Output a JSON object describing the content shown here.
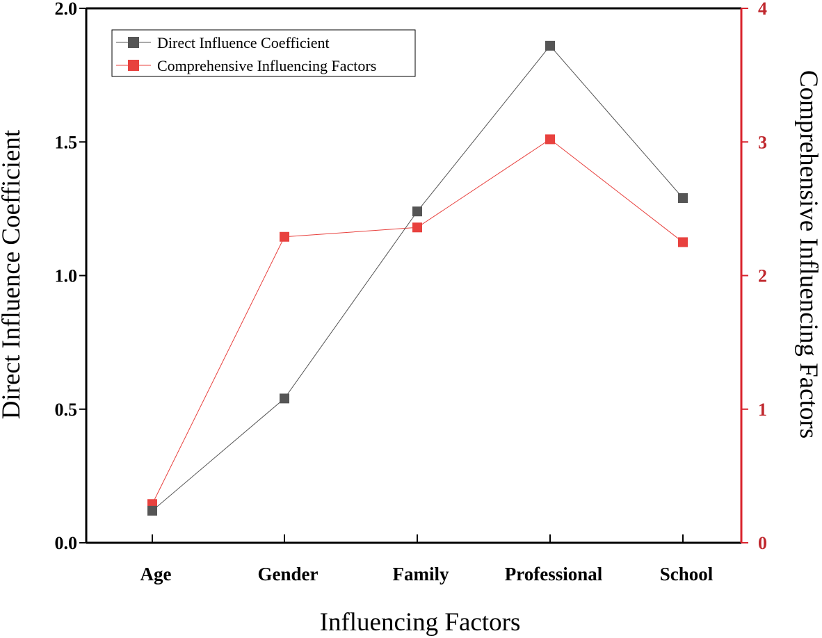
{
  "chart_data": {
    "type": "line",
    "xlabel": "Influencing Factors",
    "ylabel": "Direct Influence Coefficient",
    "ylabel_right": "Comprehensive Influencing Factors",
    "categories": [
      "Age",
      "Gender",
      "Family",
      "Professional",
      "School"
    ],
    "left_axis": {
      "ylim": [
        0,
        2.0
      ],
      "ticks": [
        0,
        0.5,
        1.0,
        1.5,
        2.0
      ],
      "tick_labels": [
        "0.0",
        "0.5",
        "1.0",
        "1.5",
        "2.0"
      ]
    },
    "right_axis": {
      "ylim": [
        0,
        4
      ],
      "ticks": [
        0,
        1,
        2,
        3,
        4
      ],
      "tick_labels": [
        "0",
        "1",
        "2",
        "3",
        "4"
      ]
    },
    "series": [
      {
        "name": "Direct Influence Coefficient",
        "axis": "left",
        "color": "#555555",
        "marker": "square",
        "values": [
          0.12,
          0.54,
          1.24,
          1.86,
          1.29
        ]
      },
      {
        "name": "Comprehensive Influencing Factors",
        "axis": "right",
        "color": "#e8413e",
        "marker": "square",
        "values": [
          0.29,
          2.29,
          2.36,
          3.02,
          2.25
        ]
      }
    ],
    "legend_position": "top-left",
    "right_axis_color": "#d9232d",
    "axis_color": "#000000",
    "grid": false
  }
}
